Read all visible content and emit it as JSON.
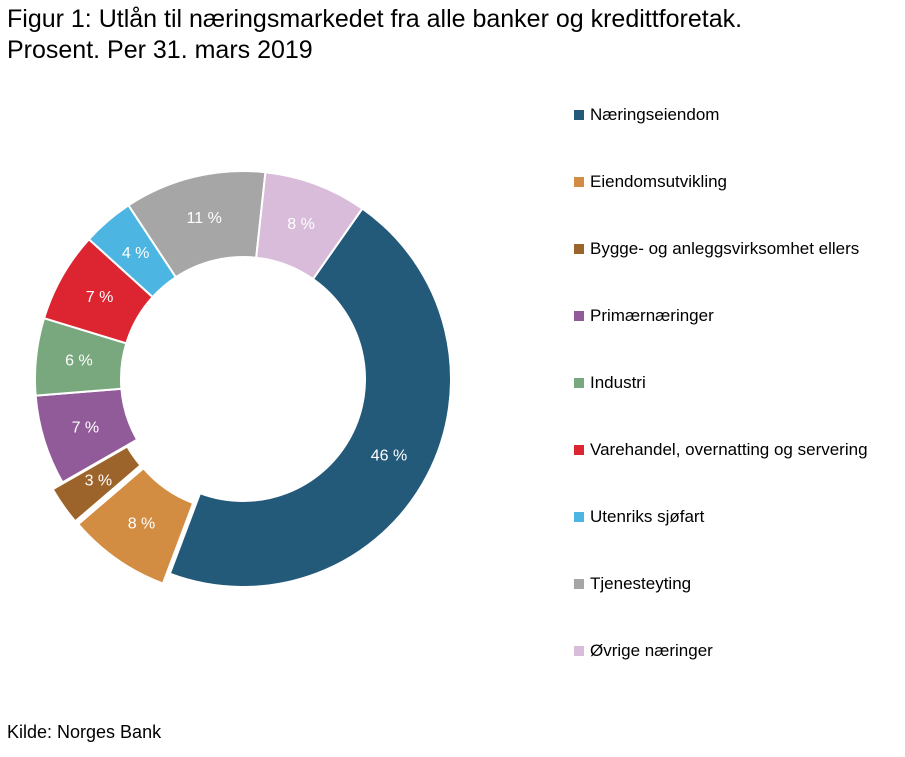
{
  "title_line1": "Figur 1: Utlån til næringsmarkedet fra alle banker og kredittforetak.",
  "title_line2": "Prosent. Per 31. mars 2019",
  "source": "Kilde: Norges Bank",
  "chart_data": {
    "type": "pie",
    "variant": "donut",
    "legend_placement": "right",
    "slices": [
      {
        "label": "Næringseiendom",
        "value": 46,
        "data_label": "46 %",
        "color": "#235a7a",
        "label_color": "#ffffff",
        "exploded": false
      },
      {
        "label": "Eiendomsutvikling",
        "value": 8,
        "data_label": "8 %",
        "color": "#d38d42",
        "label_color": "#ffffff",
        "exploded": true
      },
      {
        "label": "Bygge- og anleggsvirksomhet ellers",
        "value": 3,
        "data_label": "3 %",
        "color": "#9c642a",
        "label_color": "#ffffff",
        "exploded": true
      },
      {
        "label": "Primærnæringer",
        "value": 7,
        "data_label": "7 %",
        "color": "#915a99",
        "label_color": "#ffffff",
        "exploded": false
      },
      {
        "label": "Industri",
        "value": 6,
        "data_label": "6 %",
        "color": "#79a87e",
        "label_color": "#ffffff",
        "exploded": false
      },
      {
        "label": "Varehandel, overnatting og servering",
        "value": 7,
        "data_label": "7 %",
        "color": "#dc2530",
        "label_color": "#ffffff",
        "exploded": false
      },
      {
        "label": "Utenriks sjøfart",
        "value": 4,
        "data_label": "4 %",
        "color": "#4cb5e2",
        "label_color": "#ffffff",
        "exploded": false
      },
      {
        "label": "Tjenesteyting",
        "value": 11,
        "data_label": "11 %",
        "color": "#a6a6a6",
        "label_color": "#ffffff",
        "exploded": false
      },
      {
        "label": "Øvrige næringer",
        "value": 8,
        "data_label": "8 %",
        "color": "#d9bcd9",
        "label_color": "#ffffff",
        "exploded": false
      }
    ]
  }
}
